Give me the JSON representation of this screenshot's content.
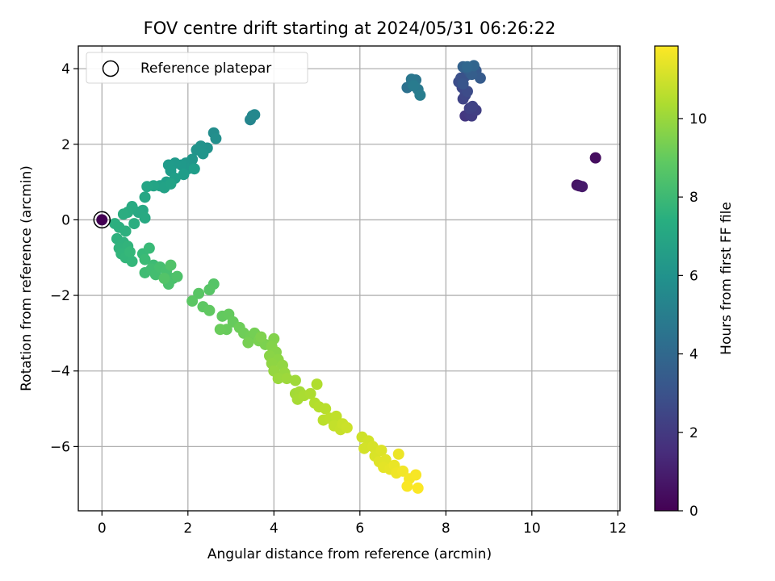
{
  "chart_data": {
    "type": "scatter",
    "title": "FOV centre drift starting at 2024/05/31 06:26:22",
    "xlabel": "Angular distance from reference (arcmin)",
    "ylabel": "Rotation from reference (arcmin)",
    "colorbar_label": "Hours from first FF file",
    "xlim": [
      -0.55,
      12.05
    ],
    "ylim": [
      -7.7,
      4.6
    ],
    "clim": [
      0,
      11.85
    ],
    "colormap": "viridis",
    "grid": true,
    "legend": {
      "label": "Reference platepar",
      "placement": "top-left"
    },
    "xticks": [
      0,
      2,
      4,
      6,
      8,
      10,
      12
    ],
    "yticks": [
      4,
      2,
      0,
      -2,
      -4,
      -6
    ],
    "cticks": [
      0,
      2,
      4,
      6,
      8,
      10
    ],
    "reference_point": {
      "x": 0,
      "y": 0
    },
    "series": [
      {
        "points": [
          [
            0.0,
            0.0,
            0.0
          ],
          [
            11.48,
            1.64,
            0.4
          ],
          [
            11.05,
            0.92,
            0.6
          ],
          [
            11.1,
            0.9,
            0.7
          ],
          [
            11.17,
            0.88,
            0.8
          ],
          [
            8.45,
            2.75,
            1.9
          ],
          [
            8.55,
            2.8,
            2.0
          ],
          [
            8.6,
            2.75,
            2.1
          ],
          [
            8.7,
            2.9,
            2.2
          ],
          [
            8.55,
            2.95,
            2.3
          ],
          [
            8.62,
            3.0,
            2.35
          ],
          [
            8.4,
            3.2,
            2.4
          ],
          [
            8.45,
            3.3,
            2.5
          ],
          [
            8.38,
            3.5,
            2.6
          ],
          [
            8.5,
            3.4,
            2.7
          ],
          [
            8.3,
            3.65,
            2.8
          ],
          [
            8.35,
            3.75,
            2.9
          ],
          [
            8.45,
            3.8,
            3.0
          ],
          [
            8.4,
            3.6,
            3.1
          ],
          [
            8.55,
            3.9,
            3.2
          ],
          [
            8.7,
            3.95,
            3.3
          ],
          [
            8.8,
            3.75,
            3.4
          ],
          [
            8.6,
            3.85,
            3.5
          ],
          [
            8.5,
            4.0,
            3.6
          ],
          [
            8.4,
            4.05,
            3.7
          ],
          [
            8.65,
            4.08,
            3.8
          ],
          [
            8.5,
            4.05,
            3.9
          ],
          [
            7.1,
            3.5,
            4.4
          ],
          [
            7.2,
            3.6,
            4.5
          ],
          [
            7.3,
            3.7,
            4.6
          ],
          [
            7.2,
            3.72,
            4.7
          ],
          [
            7.35,
            3.45,
            4.8
          ],
          [
            7.25,
            3.55,
            4.9
          ],
          [
            7.4,
            3.3,
            5.0
          ],
          [
            3.45,
            2.65,
            5.4
          ],
          [
            3.5,
            2.75,
            5.5
          ],
          [
            3.55,
            2.78,
            5.55
          ],
          [
            2.6,
            2.3,
            5.8
          ],
          [
            2.65,
            2.15,
            5.9
          ],
          [
            2.45,
            1.9,
            6.0
          ],
          [
            2.3,
            1.95,
            6.05
          ],
          [
            2.2,
            1.85,
            6.1
          ],
          [
            2.35,
            1.75,
            6.15
          ],
          [
            2.1,
            1.6,
            6.2
          ],
          [
            1.95,
            1.5,
            6.25
          ],
          [
            2.0,
            1.35,
            6.3
          ],
          [
            1.85,
            1.45,
            6.35
          ],
          [
            1.7,
            1.5,
            6.4
          ],
          [
            1.55,
            1.45,
            6.45
          ],
          [
            1.6,
            1.3,
            6.5
          ],
          [
            1.9,
            1.2,
            6.55
          ],
          [
            2.15,
            1.35,
            6.6
          ],
          [
            1.7,
            1.1,
            6.65
          ],
          [
            1.5,
            1.0,
            6.7
          ],
          [
            1.35,
            0.9,
            6.75
          ],
          [
            1.45,
            0.85,
            6.8
          ],
          [
            1.6,
            0.95,
            6.85
          ],
          [
            1.2,
            0.9,
            6.9
          ],
          [
            1.05,
            0.88,
            6.95
          ],
          [
            1.0,
            0.6,
            7.0
          ],
          [
            0.95,
            0.25,
            7.05
          ],
          [
            0.85,
            0.2,
            7.1
          ],
          [
            1.0,
            0.05,
            7.15
          ],
          [
            0.7,
            0.35,
            7.2
          ],
          [
            0.6,
            0.2,
            7.25
          ],
          [
            0.5,
            0.15,
            7.3
          ],
          [
            0.75,
            -0.1,
            7.35
          ],
          [
            0.3,
            -0.1,
            7.4
          ],
          [
            0.4,
            -0.2,
            7.45
          ],
          [
            0.55,
            -0.3,
            7.5
          ],
          [
            0.35,
            -0.5,
            7.55
          ],
          [
            0.5,
            -0.6,
            7.6
          ],
          [
            0.4,
            -0.75,
            7.65
          ],
          [
            0.6,
            -0.7,
            7.7
          ],
          [
            0.45,
            -0.9,
            7.75
          ],
          [
            0.55,
            -1.0,
            7.8
          ],
          [
            0.7,
            -1.1,
            7.85
          ],
          [
            0.65,
            -0.85,
            7.9
          ],
          [
            0.95,
            -0.9,
            7.95
          ],
          [
            1.1,
            -0.75,
            8.0
          ],
          [
            1.0,
            -1.05,
            8.05
          ],
          [
            1.2,
            -1.2,
            8.1
          ],
          [
            1.0,
            -1.4,
            8.15
          ],
          [
            1.15,
            -1.3,
            8.2
          ],
          [
            1.25,
            -1.45,
            8.25
          ],
          [
            1.35,
            -1.25,
            8.3
          ],
          [
            1.5,
            -1.35,
            8.35
          ],
          [
            1.65,
            -1.55,
            8.4
          ],
          [
            1.55,
            -1.7,
            8.45
          ],
          [
            1.75,
            -1.5,
            8.5
          ],
          [
            1.6,
            -1.2,
            8.55
          ],
          [
            1.45,
            -1.55,
            8.6
          ],
          [
            2.6,
            -1.7,
            8.65
          ],
          [
            2.5,
            -1.85,
            8.7
          ],
          [
            2.25,
            -1.95,
            8.75
          ],
          [
            2.1,
            -2.15,
            8.8
          ],
          [
            2.35,
            -2.3,
            8.85
          ],
          [
            2.5,
            -2.4,
            8.9
          ],
          [
            2.8,
            -2.55,
            8.95
          ],
          [
            2.95,
            -2.5,
            9.0
          ],
          [
            3.05,
            -2.7,
            9.05
          ],
          [
            2.9,
            -2.9,
            9.1
          ],
          [
            2.75,
            -2.9,
            9.15
          ],
          [
            3.2,
            -2.85,
            9.2
          ],
          [
            3.3,
            -3.0,
            9.25
          ],
          [
            3.45,
            -3.1,
            9.3
          ],
          [
            3.55,
            -3.0,
            9.35
          ],
          [
            3.4,
            -3.25,
            9.4
          ],
          [
            3.65,
            -3.2,
            9.45
          ],
          [
            3.8,
            -3.3,
            9.5
          ],
          [
            3.7,
            -3.1,
            9.55
          ],
          [
            4.0,
            -3.15,
            9.6
          ],
          [
            3.95,
            -3.35,
            9.65
          ],
          [
            4.05,
            -3.5,
            9.7
          ],
          [
            3.9,
            -3.6,
            9.75
          ],
          [
            4.1,
            -3.7,
            9.8
          ],
          [
            3.95,
            -3.8,
            9.85
          ],
          [
            4.2,
            -3.85,
            9.9
          ],
          [
            4.0,
            -4.0,
            9.95
          ],
          [
            4.25,
            -4.05,
            10.0
          ],
          [
            4.1,
            -4.2,
            10.05
          ],
          [
            4.3,
            -4.2,
            10.1
          ],
          [
            4.5,
            -4.25,
            10.15
          ],
          [
            4.5,
            -4.6,
            10.2
          ],
          [
            4.6,
            -4.55,
            10.25
          ],
          [
            4.55,
            -4.75,
            10.3
          ],
          [
            4.7,
            -4.65,
            10.35
          ],
          [
            4.85,
            -4.6,
            10.4
          ],
          [
            5.0,
            -4.35,
            10.45
          ],
          [
            4.95,
            -4.85,
            10.5
          ],
          [
            5.05,
            -4.95,
            10.55
          ],
          [
            5.2,
            -5.0,
            10.6
          ],
          [
            5.15,
            -5.3,
            10.65
          ],
          [
            5.3,
            -5.25,
            10.7
          ],
          [
            5.45,
            -5.2,
            10.75
          ],
          [
            5.4,
            -5.45,
            10.8
          ],
          [
            5.55,
            -5.55,
            10.85
          ],
          [
            5.6,
            -5.4,
            10.9
          ],
          [
            5.7,
            -5.5,
            10.95
          ],
          [
            6.05,
            -5.75,
            11.0
          ],
          [
            6.2,
            -5.85,
            11.05
          ],
          [
            6.1,
            -6.05,
            11.1
          ],
          [
            6.3,
            -6.0,
            11.15
          ],
          [
            6.35,
            -6.25,
            11.2
          ],
          [
            6.5,
            -6.1,
            11.25
          ],
          [
            6.45,
            -6.4,
            11.3
          ],
          [
            6.6,
            -6.35,
            11.35
          ],
          [
            6.55,
            -6.55,
            11.4
          ],
          [
            6.7,
            -6.6,
            11.45
          ],
          [
            6.8,
            -6.5,
            11.5
          ],
          [
            6.9,
            -6.2,
            11.55
          ],
          [
            6.85,
            -6.7,
            11.6
          ],
          [
            7.0,
            -6.65,
            11.65
          ],
          [
            7.15,
            -6.85,
            11.7
          ],
          [
            7.3,
            -6.75,
            11.75
          ],
          [
            7.1,
            -7.05,
            11.78
          ],
          [
            7.35,
            -7.1,
            11.82
          ]
        ]
      }
    ]
  }
}
